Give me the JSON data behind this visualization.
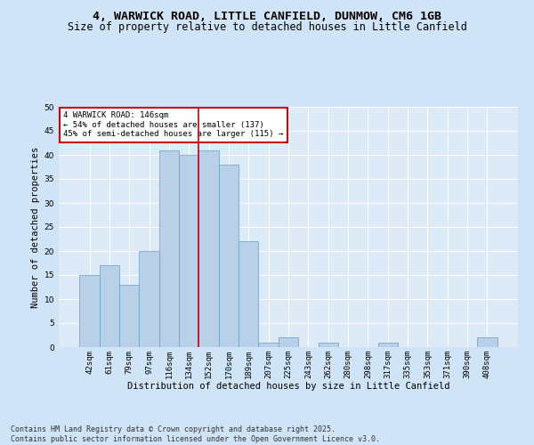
{
  "title_line1": "4, WARWICK ROAD, LITTLE CANFIELD, DUNMOW, CM6 1GB",
  "title_line2": "Size of property relative to detached houses in Little Canfield",
  "xlabel": "Distribution of detached houses by size in Little Canfield",
  "ylabel": "Number of detached properties",
  "categories": [
    "42sqm",
    "61sqm",
    "79sqm",
    "97sqm",
    "116sqm",
    "134sqm",
    "152sqm",
    "170sqm",
    "189sqm",
    "207sqm",
    "225sqm",
    "243sqm",
    "262sqm",
    "280sqm",
    "298sqm",
    "317sqm",
    "335sqm",
    "353sqm",
    "371sqm",
    "390sqm",
    "408sqm"
  ],
  "values": [
    15,
    17,
    13,
    20,
    41,
    40,
    41,
    38,
    22,
    1,
    2,
    0,
    1,
    0,
    0,
    1,
    0,
    0,
    0,
    0,
    2
  ],
  "bar_color": "#b8d0e8",
  "bar_edge_color": "#6a9ec0",
  "vline_x": 5.5,
  "vline_color": "#cc0000",
  "annotation_text": "4 WARWICK ROAD: 146sqm\n← 54% of detached houses are smaller (137)\n45% of semi-detached houses are larger (115) →",
  "annotation_box_color": "#ffffff",
  "annotation_box_edge_color": "#cc0000",
  "ylim": [
    0,
    50
  ],
  "yticks": [
    0,
    5,
    10,
    15,
    20,
    25,
    30,
    35,
    40,
    45,
    50
  ],
  "footer_text": "Contains HM Land Registry data © Crown copyright and database right 2025.\nContains public sector information licensed under the Open Government Licence v3.0.",
  "bg_color": "#d0e4f7",
  "plot_bg_color": "#ddeaf7",
  "grid_color": "#ffffff",
  "title_fontsize": 9.5,
  "subtitle_fontsize": 8.5,
  "tick_fontsize": 6.5,
  "label_fontsize": 7.5,
  "footer_fontsize": 6.0,
  "annotation_fontsize": 6.5
}
